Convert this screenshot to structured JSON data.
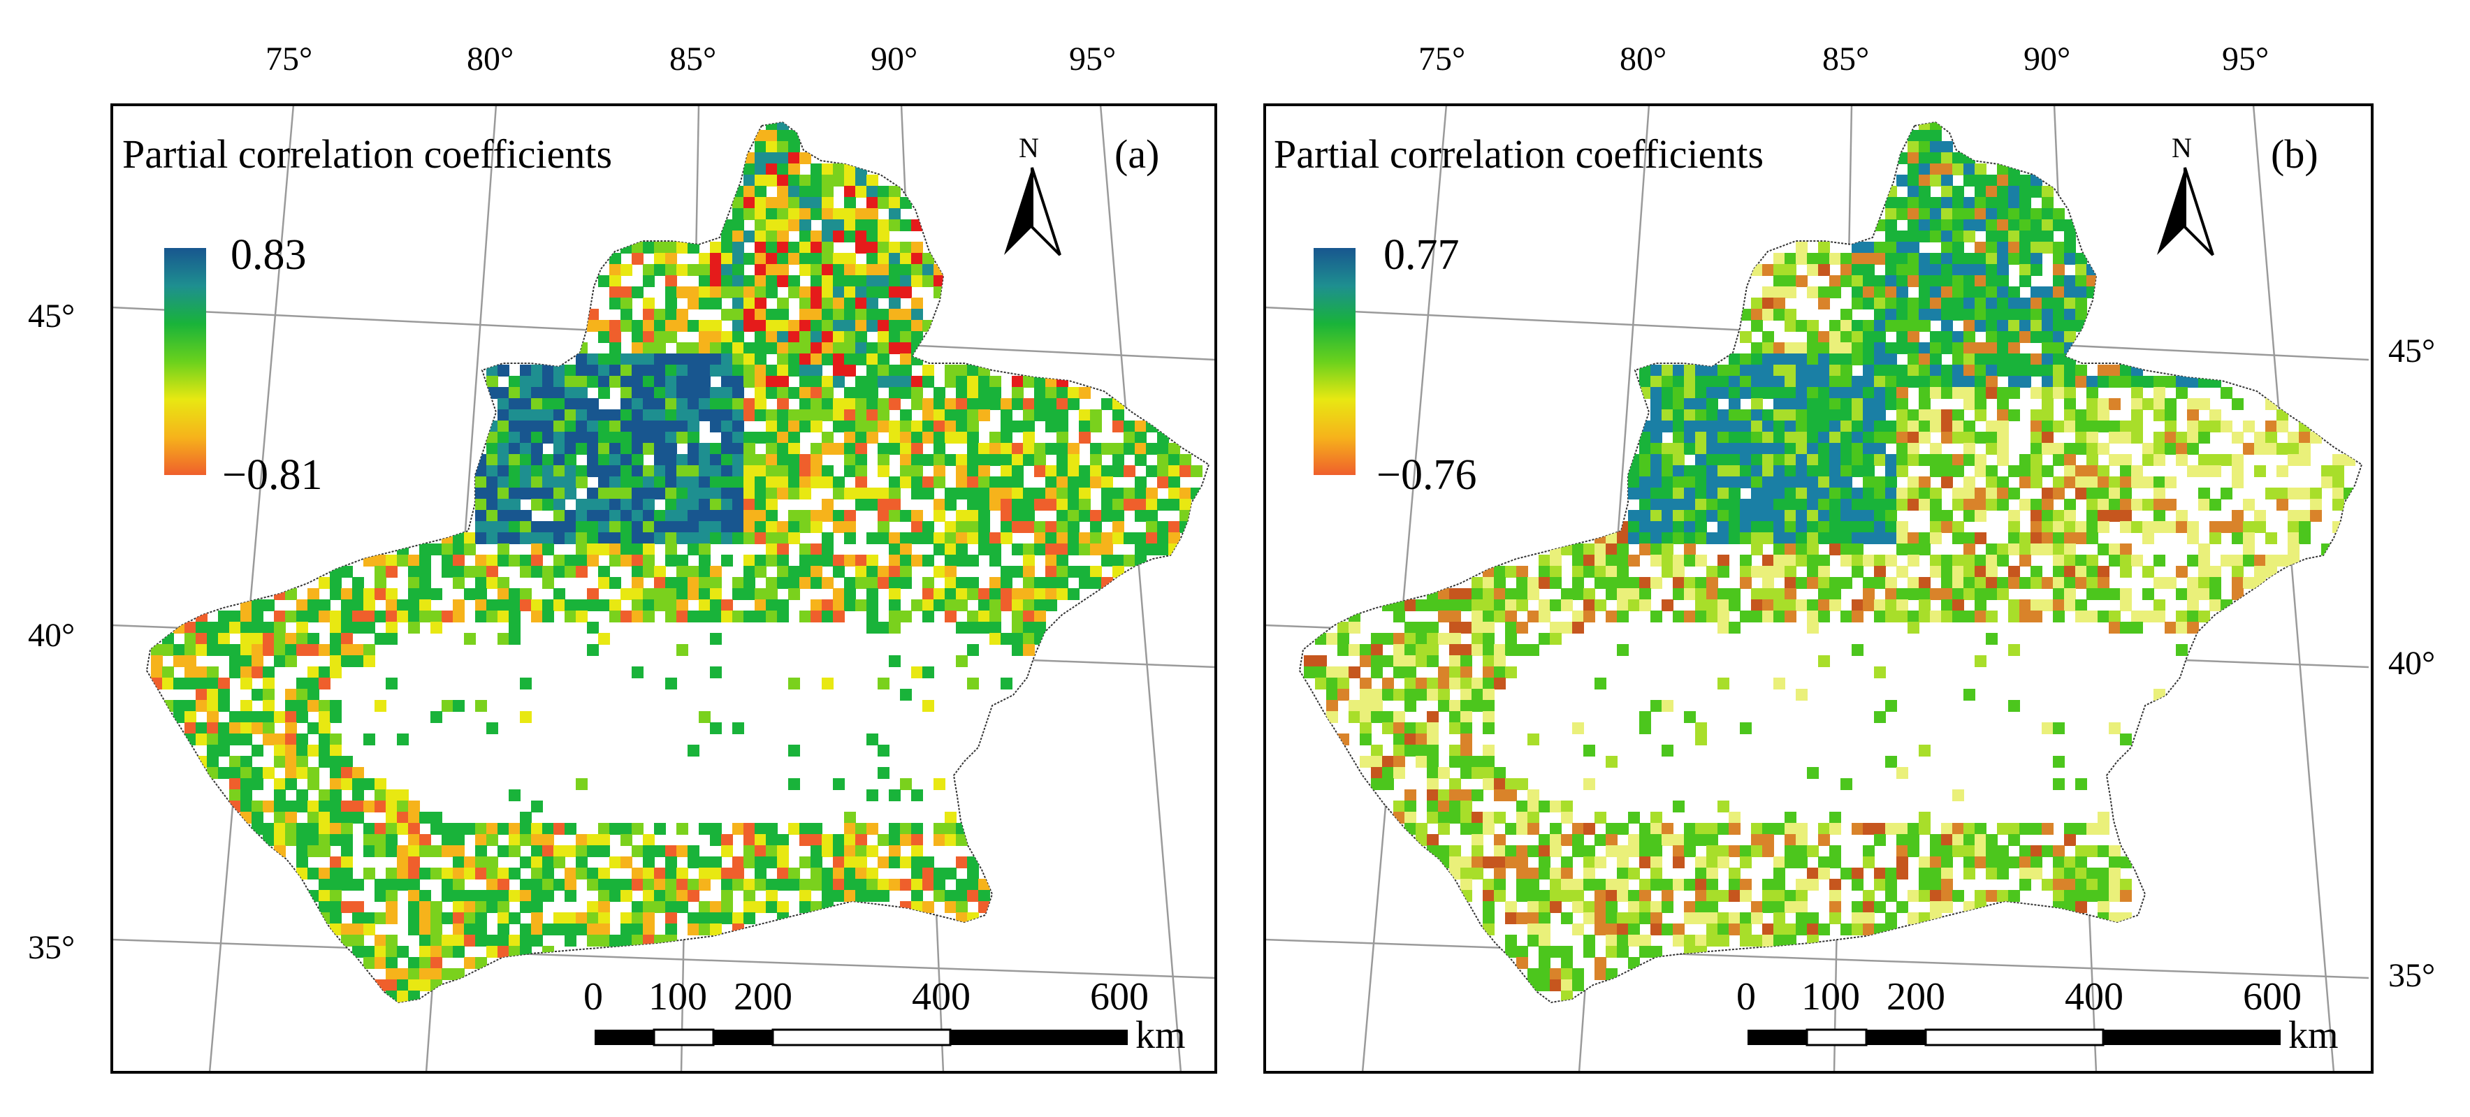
{
  "panels": [
    {
      "id": "a",
      "panel_label": "(a)",
      "legend_title": "Partial correlation coefficients",
      "legend_max": "0.83",
      "legend_min": "−0.81",
      "legend_colors": [
        "#18568f",
        "#1e8f90",
        "#19b33a",
        "#6ad11d",
        "#e8e812",
        "#f6b31b",
        "#ef5f2c"
      ],
      "north_label": "N",
      "lon_labels": [
        "75°",
        "80°",
        "85°",
        "90°",
        "95°"
      ],
      "lat_labels": [
        "45°",
        "40°",
        "35°"
      ],
      "scale_ticks": [
        "0",
        "100",
        "200",
        "400",
        "600"
      ],
      "scale_unit": "km",
      "palette": [
        "#18568f",
        "#1e8f90",
        "#19b33a",
        "#7ad11d",
        "#e8e812",
        "#f6b31b",
        "#ef5f2c",
        "#e51b1b"
      ]
    },
    {
      "id": "b",
      "panel_label": "(b)",
      "legend_title": "Partial correlation coefficients",
      "legend_max": "0.77",
      "legend_min": "−0.76",
      "legend_colors": [
        "#18568f",
        "#1e8f90",
        "#19b33a",
        "#6ad11d",
        "#e8e812",
        "#f6b31b",
        "#ef5f2c"
      ],
      "north_label": "N",
      "lon_labels": [
        "75°",
        "80°",
        "85°",
        "90°",
        "95°"
      ],
      "lat_labels": [
        "45°",
        "40°",
        "35°"
      ],
      "scale_ticks": [
        "0",
        "100",
        "200",
        "400",
        "600"
      ],
      "scale_unit": "km",
      "palette": [
        "#1a7fa5",
        "#19b33a",
        "#4cc61d",
        "#a8de2a",
        "#eaf07a",
        "#d9832a",
        "#c6561e"
      ]
    }
  ]
}
